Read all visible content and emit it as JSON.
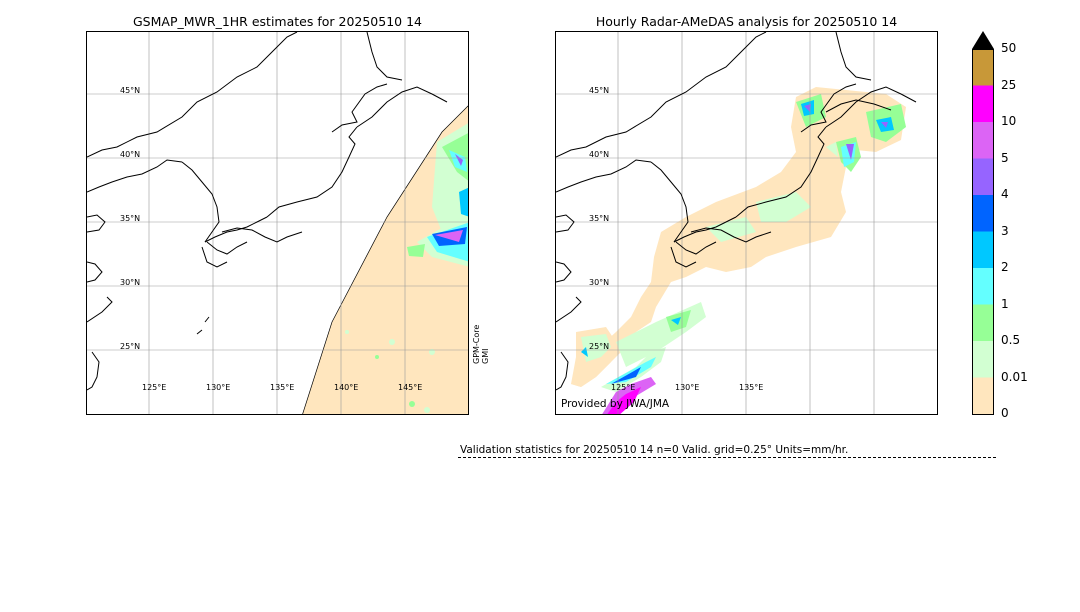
{
  "left_panel": {
    "title": "GSMAP_MWR_1HR estimates for 20250510 14",
    "lat_labels": [
      "45°N",
      "40°N",
      "35°N",
      "30°N",
      "25°N"
    ],
    "lon_labels": [
      "125°E",
      "130°E",
      "135°E",
      "140°E",
      "145°E"
    ],
    "satellite_line1": "GPM-Core",
    "satellite_line2": "GMI"
  },
  "right_panel": {
    "title": "Hourly Radar-AMeDAS analysis for 20250510 14",
    "lat_labels": [
      "45°N",
      "40°N",
      "35°N",
      "30°N",
      "25°N"
    ],
    "lon_labels": [
      "125°E",
      "130°E",
      "135°E"
    ],
    "credit": "Provided by JWA/JMA"
  },
  "colorbar": {
    "labels": [
      "50",
      "25",
      "10",
      "5",
      "4",
      "3",
      "2",
      "1",
      "0.5",
      "0.01",
      "0"
    ],
    "colors": [
      "#c89838",
      "#ff00ff",
      "#dc64f5",
      "#9664ff",
      "#0064ff",
      "#00c8ff",
      "#64ffff",
      "#96ff96",
      "#d2ffd2",
      "#ffe6be"
    ],
    "extend_color": "#000000"
  },
  "validation_text": "Validation statistics for 20250510 14  n=0 Valid. grid=0.25° Units=mm/hr.",
  "map_colors": {
    "coast": "#000000",
    "grid": "#999999",
    "swath_fill": "#ffe6be"
  }
}
